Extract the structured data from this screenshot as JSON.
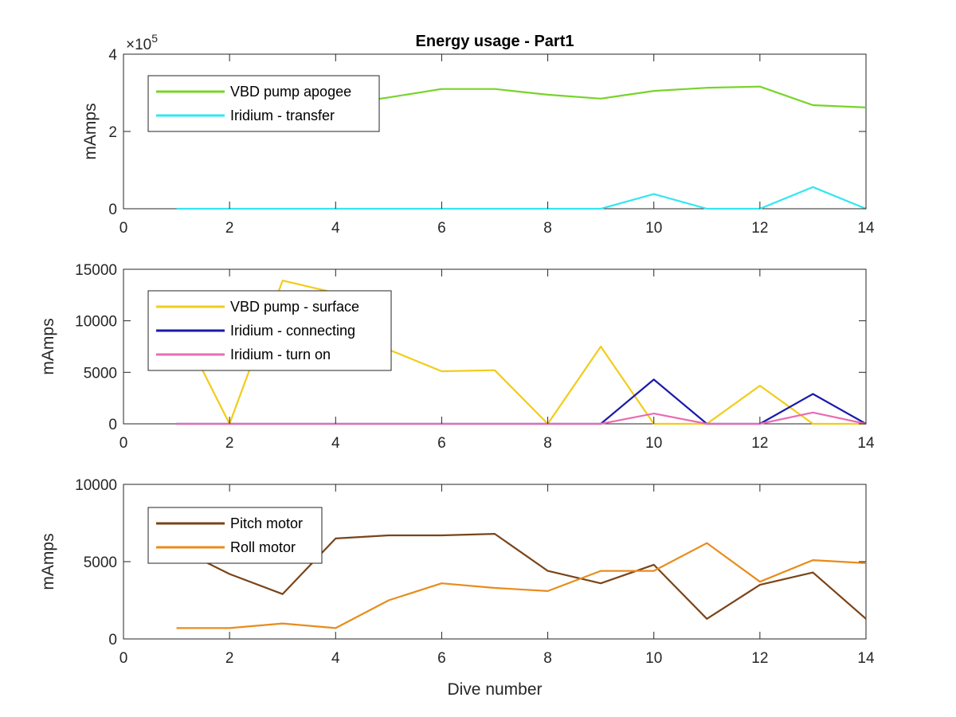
{
  "figure": {
    "title": "Energy usage - Part1",
    "xlabel": "Dive number"
  },
  "chart_data": [
    {
      "type": "line",
      "title": "Energy usage - Part1",
      "xlabel": "",
      "ylabel": "mAmps",
      "xlim": [
        0,
        14
      ],
      "ylim": [
        0,
        400000
      ],
      "xticks": [
        0,
        2,
        4,
        6,
        8,
        10,
        12,
        14
      ],
      "yticks": [
        0,
        200000,
        400000
      ],
      "ytick_labels": [
        "0",
        "2",
        "4"
      ],
      "yexponent": "×10",
      "yexponent_power": "5",
      "grid": false,
      "legend_position": "top-left",
      "x": [
        1,
        2,
        3,
        4,
        5,
        6,
        7,
        8,
        9,
        10,
        11,
        12,
        13,
        14
      ],
      "series": [
        {
          "name": "VBD pump apogee",
          "color": "#77d42a",
          "values": [
            255000,
            262000,
            266000,
            268000,
            288000,
            310000,
            310000,
            295000,
            285000,
            305000,
            313000,
            316000,
            268000,
            262000
          ]
        },
        {
          "name": "Iridium - transfer",
          "color": "#33e6f0",
          "values": [
            0,
            0,
            0,
            0,
            0,
            0,
            0,
            0,
            0,
            38000,
            0,
            0,
            56000,
            0
          ]
        }
      ]
    },
    {
      "type": "line",
      "xlabel": "",
      "ylabel": "mAmps",
      "xlim": [
        0,
        14
      ],
      "ylim": [
        0,
        15000
      ],
      "xticks": [
        0,
        2,
        4,
        6,
        8,
        10,
        12,
        14
      ],
      "yticks": [
        0,
        5000,
        10000,
        15000
      ],
      "ytick_labels": [
        "0",
        "5000",
        "10000",
        "15000"
      ],
      "grid": false,
      "legend_position": "top-left",
      "x": [
        1,
        2,
        3,
        4,
        5,
        6,
        7,
        8,
        9,
        10,
        11,
        12,
        13,
        14
      ],
      "series": [
        {
          "name": "VBD pump - surface",
          "color": "#f2cc1a",
          "values": [
            10200,
            0,
            13900,
            12700,
            7200,
            5100,
            5200,
            0,
            7500,
            0,
            0,
            3700,
            0,
            0
          ]
        },
        {
          "name": "Iridium - connecting",
          "color": "#1a1aa8",
          "values": [
            0,
            0,
            0,
            0,
            0,
            0,
            0,
            0,
            0,
            4300,
            0,
            0,
            2900,
            0
          ]
        },
        {
          "name": "Iridium - turn on",
          "color": "#e86cb5",
          "values": [
            0,
            0,
            0,
            0,
            0,
            0,
            0,
            0,
            0,
            1000,
            0,
            0,
            1100,
            0
          ]
        }
      ]
    },
    {
      "type": "line",
      "xlabel": "Dive number",
      "ylabel": "mAmps",
      "xlim": [
        0,
        14
      ],
      "ylim": [
        0,
        10000
      ],
      "xticks": [
        0,
        2,
        4,
        6,
        8,
        10,
        12,
        14
      ],
      "yticks": [
        0,
        5000,
        10000
      ],
      "ytick_labels": [
        "0",
        "5000",
        "10000"
      ],
      "grid": false,
      "legend_position": "top-left",
      "x": [
        1,
        2,
        3,
        4,
        5,
        6,
        7,
        8,
        9,
        10,
        11,
        12,
        13,
        14
      ],
      "series": [
        {
          "name": "Pitch motor",
          "color": "#7a4418",
          "values": [
            5900,
            4200,
            2900,
            6500,
            6700,
            6700,
            6800,
            4400,
            3600,
            4800,
            1300,
            3500,
            4300,
            1300
          ]
        },
        {
          "name": "Roll motor",
          "color": "#e88c1c",
          "values": [
            700,
            700,
            1000,
            700,
            2500,
            3600,
            3300,
            3100,
            4400,
            4400,
            6200,
            3700,
            5100,
            4900
          ]
        }
      ]
    }
  ]
}
